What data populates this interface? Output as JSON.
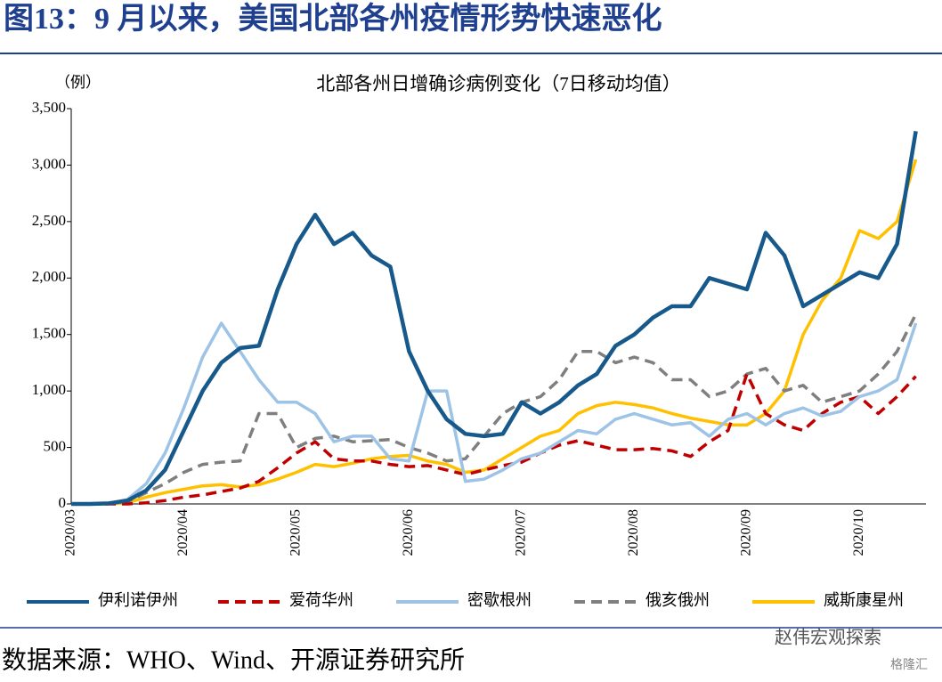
{
  "header": {
    "title": "图13：9 月以来，美国北部各州疫情形势快速恶化"
  },
  "chart_data": {
    "type": "line",
    "title": "北部各州日增确诊病例变化（7日移动均值）",
    "y_unit": "（例）",
    "categories": [
      "2020/03",
      null,
      null,
      null,
      null,
      null,
      "2020/04",
      null,
      null,
      null,
      null,
      null,
      "2020/05",
      null,
      null,
      null,
      null,
      null,
      "2020/06",
      null,
      null,
      null,
      null,
      null,
      "2020/07",
      null,
      null,
      null,
      null,
      null,
      "2020/08",
      null,
      null,
      null,
      null,
      null,
      "2020/09",
      null,
      null,
      null,
      null,
      null,
      "2020/10",
      null,
      null,
      null
    ],
    "ylim": [
      0,
      3500
    ],
    "yticks": [
      0,
      500,
      {
        "value": 1000,
        "label": "1,000"
      },
      {
        "value": 1500,
        "label": "1,500"
      },
      {
        "value": 2000,
        "label": "2,000"
      },
      {
        "value": 2500,
        "label": "2,500"
      },
      {
        "value": 3000,
        "label": "3,000"
      },
      {
        "value": 3500,
        "label": "3,500"
      }
    ],
    "legend": "bottom",
    "series": [
      {
        "name": "伊利诺伊州",
        "color": "#17598a",
        "style": "solid",
        "values": [
          0,
          0,
          5,
          30,
          120,
          300,
          650,
          1000,
          1250,
          1380,
          1400,
          1900,
          2300,
          2560,
          2300,
          2400,
          2200,
          2100,
          1350,
          1000,
          750,
          620,
          600,
          620,
          900,
          800,
          900,
          1050,
          1150,
          1400,
          1500,
          1650,
          1750,
          1750,
          2000,
          1950,
          1900,
          2400,
          2200,
          1750,
          1850,
          1950,
          2050,
          2000,
          2300,
          3300
        ]
      },
      {
        "name": "爱荷华州",
        "color": "#c00000",
        "style": "dashed",
        "values": [
          0,
          0,
          0,
          0,
          10,
          30,
          60,
          80,
          110,
          140,
          200,
          320,
          450,
          550,
          400,
          380,
          380,
          350,
          330,
          340,
          300,
          260,
          300,
          340,
          370,
          450,
          520,
          560,
          520,
          480,
          480,
          490,
          470,
          420,
          550,
          650,
          1150,
          800,
          700,
          650,
          800,
          900,
          950,
          800,
          950,
          1130
        ]
      },
      {
        "name": "密歇根州",
        "color": "#9dc3e6",
        "style": "solid",
        "values": [
          0,
          0,
          5,
          40,
          180,
          450,
          850,
          1300,
          1600,
          1350,
          1100,
          900,
          900,
          800,
          550,
          600,
          600,
          400,
          380,
          1000,
          1000,
          200,
          220,
          300,
          400,
          450,
          550,
          650,
          620,
          750,
          800,
          750,
          700,
          720,
          600,
          750,
          800,
          700,
          800,
          850,
          780,
          820,
          950,
          1000,
          1100,
          1600
        ]
      },
      {
        "name": "俄亥俄州",
        "color": "#7f7f7f",
        "style": "dashed",
        "values": [
          0,
          0,
          5,
          20,
          100,
          180,
          280,
          350,
          370,
          380,
          800,
          800,
          500,
          580,
          600,
          550,
          560,
          570,
          500,
          450,
          380,
          400,
          600,
          800,
          900,
          950,
          1100,
          1350,
          1350,
          1250,
          1300,
          1250,
          1100,
          1100,
          950,
          1000,
          1150,
          1200,
          1000,
          1050,
          900,
          950,
          1000,
          1150,
          1350,
          1680
        ]
      },
      {
        "name": "威斯康星州",
        "color": "#ffc000",
        "style": "solid",
        "values": [
          0,
          0,
          0,
          10,
          60,
          100,
          130,
          160,
          170,
          150,
          170,
          220,
          280,
          350,
          330,
          360,
          400,
          420,
          430,
          380,
          350,
          280,
          300,
          400,
          500,
          600,
          650,
          800,
          870,
          900,
          880,
          850,
          800,
          760,
          730,
          700,
          700,
          800,
          1000,
          1500,
          1800,
          2000,
          2420,
          2350,
          2500,
          3050
        ]
      }
    ]
  },
  "source": "数据来源：WHO、Wind、开源证券研究所",
  "watermark": "赵伟宏观探索",
  "watermark2": "格隆汇"
}
